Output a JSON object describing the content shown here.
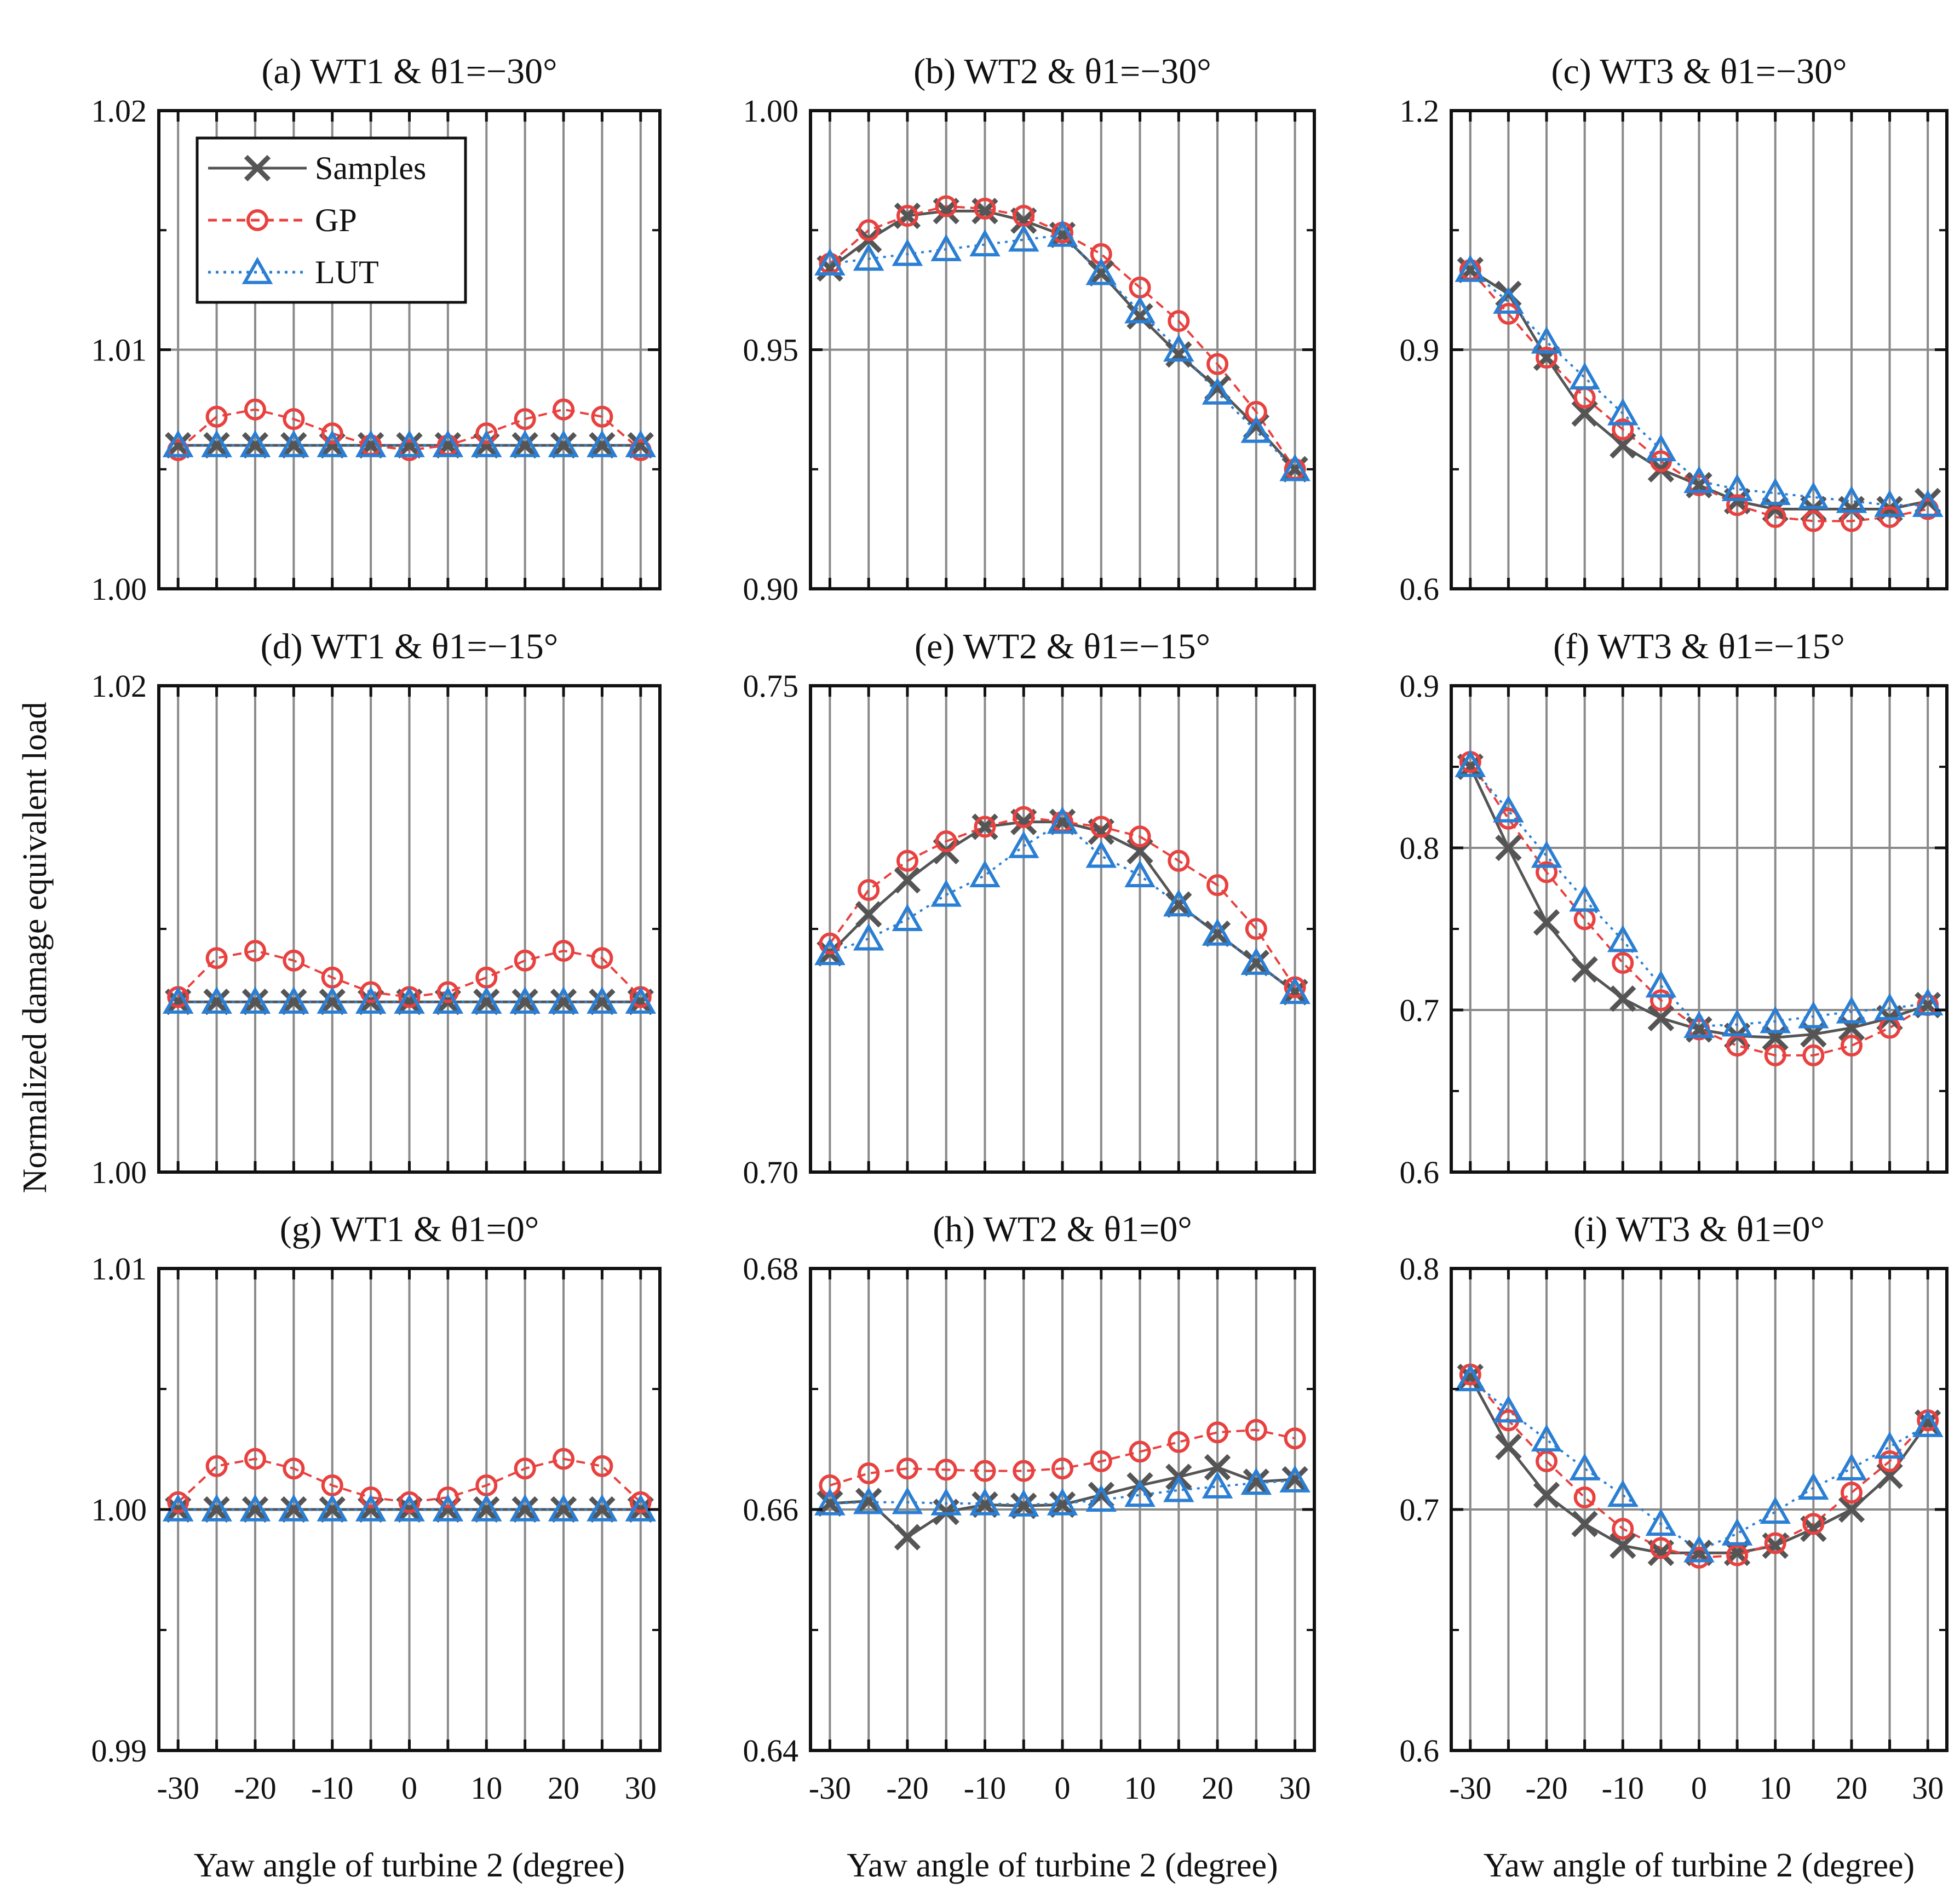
{
  "figure": {
    "ylabel": "Normalized damage equivalent load",
    "xlabel": "Yaw angle of turbine 2  (degree)",
    "legend": [
      {
        "name": "Samples",
        "color": "#555555",
        "marker": "x",
        "line": "solid"
      },
      {
        "name": "GP",
        "color": "#e8413f",
        "marker": "circle",
        "line": "dashed"
      },
      {
        "name": "LUT",
        "color": "#2a7fd4",
        "marker": "triangle",
        "line": "dotted"
      }
    ]
  },
  "chart_data": [
    {
      "type": "line",
      "panel": "a",
      "title": "(a) WT1 & θ1=−30°",
      "xlabel": "",
      "ylabel": "Normalized damage equivalent load",
      "x": [
        -30,
        -25,
        -20,
        -15,
        -10,
        -5,
        0,
        5,
        10,
        15,
        20,
        25,
        30
      ],
      "xticks": [
        "",
        "",
        "",
        "",
        "",
        "",
        "",
        "",
        "",
        "",
        "",
        "",
        ""
      ],
      "ylim": [
        1.0,
        1.02
      ],
      "yticks": [
        1.0,
        1.01,
        1.02
      ],
      "ytick_labels": [
        "1.00",
        "1.01",
        "1.02"
      ],
      "ygrid": [
        1.01
      ],
      "series": [
        {
          "name": "Samples",
          "values": [
            1.006,
            1.006,
            1.006,
            1.006,
            1.006,
            1.006,
            1.006,
            1.006,
            1.006,
            1.006,
            1.006,
            1.006,
            1.006
          ]
        },
        {
          "name": "GP",
          "values": [
            1.0058,
            1.0072,
            1.0075,
            1.0071,
            1.0065,
            1.006,
            1.0058,
            1.006,
            1.0065,
            1.0071,
            1.0075,
            1.0072,
            1.0058
          ]
        },
        {
          "name": "LUT",
          "values": [
            1.006,
            1.006,
            1.006,
            1.006,
            1.006,
            1.006,
            1.006,
            1.006,
            1.006,
            1.006,
            1.006,
            1.006,
            1.006
          ]
        }
      ]
    },
    {
      "type": "line",
      "panel": "b",
      "title": "(b) WT2 & θ1=−30°",
      "xlabel": "",
      "ylabel": "",
      "x": [
        -30,
        -25,
        -20,
        -15,
        -10,
        -5,
        0,
        5,
        10,
        15,
        20,
        25,
        30
      ],
      "xticks": [
        "",
        "",
        "",
        "",
        "",
        "",
        "",
        "",
        "",
        "",
        "",
        "",
        ""
      ],
      "ylim": [
        0.9,
        1.0
      ],
      "yticks": [
        0.9,
        0.95,
        1.0
      ],
      "ytick_labels": [
        "0.90",
        "0.95",
        "1.00"
      ],
      "ygrid": [
        0.95
      ],
      "series": [
        {
          "name": "Samples",
          "values": [
            0.967,
            0.973,
            0.978,
            0.979,
            0.979,
            0.977,
            0.974,
            0.966,
            0.957,
            0.949,
            0.942,
            0.934,
            0.925
          ]
        },
        {
          "name": "GP",
          "values": [
            0.968,
            0.975,
            0.978,
            0.98,
            0.9795,
            0.978,
            0.9745,
            0.97,
            0.963,
            0.956,
            0.947,
            0.937,
            0.925
          ]
        },
        {
          "name": "LUT",
          "values": [
            0.968,
            0.969,
            0.97,
            0.971,
            0.972,
            0.973,
            0.974,
            0.966,
            0.958,
            0.95,
            0.941,
            0.933,
            0.925
          ]
        }
      ]
    },
    {
      "type": "line",
      "panel": "c",
      "title": "(c) WT3 & θ1=−30°",
      "xlabel": "",
      "ylabel": "",
      "x": [
        -30,
        -25,
        -20,
        -15,
        -10,
        -5,
        0,
        5,
        10,
        15,
        20,
        25,
        30
      ],
      "xticks": [
        "",
        "",
        "",
        "",
        "",
        "",
        "",
        "",
        "",
        "",
        "",
        "",
        ""
      ],
      "ylim": [
        0.6,
        1.2
      ],
      "yticks": [
        0.6,
        0.9,
        1.2
      ],
      "ytick_labels": [
        "0.6",
        "0.9",
        "1.2"
      ],
      "ygrid": [
        0.9
      ],
      "series": [
        {
          "name": "Samples",
          "values": [
            1.0,
            0.97,
            0.89,
            0.82,
            0.78,
            0.75,
            0.73,
            0.71,
            0.7,
            0.7,
            0.7,
            0.7,
            0.71
          ]
        },
        {
          "name": "GP",
          "values": [
            1.0,
            0.945,
            0.89,
            0.84,
            0.8,
            0.76,
            0.73,
            0.705,
            0.69,
            0.685,
            0.685,
            0.69,
            0.7
          ]
        },
        {
          "name": "LUT",
          "values": [
            1.0,
            0.96,
            0.91,
            0.865,
            0.82,
            0.775,
            0.735,
            0.725,
            0.72,
            0.715,
            0.71,
            0.705,
            0.705
          ]
        }
      ]
    },
    {
      "type": "line",
      "panel": "d",
      "title": "(d) WT1 & θ1=−15°",
      "xlabel": "",
      "ylabel": "",
      "x": [
        -30,
        -25,
        -20,
        -15,
        -10,
        -5,
        0,
        5,
        10,
        15,
        20,
        25,
        30
      ],
      "xticks": [
        "",
        "",
        "",
        "",
        "",
        "",
        "",
        "",
        "",
        "",
        "",
        "",
        ""
      ],
      "ylim": [
        1.0,
        1.02
      ],
      "yticks": [
        1.0,
        1.02
      ],
      "ytick_labels": [
        "1.00",
        "1.02"
      ],
      "ygrid": [],
      "series": [
        {
          "name": "Samples",
          "values": [
            1.007,
            1.007,
            1.007,
            1.007,
            1.007,
            1.007,
            1.007,
            1.007,
            1.007,
            1.007,
            1.007,
            1.007,
            1.007
          ]
        },
        {
          "name": "GP",
          "values": [
            1.0072,
            1.0088,
            1.0091,
            1.0087,
            1.008,
            1.0074,
            1.0072,
            1.0074,
            1.008,
            1.0087,
            1.0091,
            1.0088,
            1.0072
          ]
        },
        {
          "name": "LUT",
          "values": [
            1.007,
            1.007,
            1.007,
            1.007,
            1.007,
            1.007,
            1.007,
            1.007,
            1.007,
            1.007,
            1.007,
            1.007,
            1.007
          ]
        }
      ]
    },
    {
      "type": "line",
      "panel": "e",
      "title": "(e) WT2 & θ1=−15°",
      "xlabel": "",
      "ylabel": "",
      "x": [
        -30,
        -25,
        -20,
        -15,
        -10,
        -5,
        0,
        5,
        10,
        15,
        20,
        25,
        30
      ],
      "xticks": [
        "",
        "",
        "",
        "",
        "",
        "",
        "",
        "",
        "",
        "",
        "",
        "",
        ""
      ],
      "ylim": [
        0.7,
        0.75
      ],
      "yticks": [
        0.7,
        0.75
      ],
      "ytick_labels": [
        "0.70",
        "0.75"
      ],
      "ygrid": [],
      "series": [
        {
          "name": "Samples",
          "values": [
            0.7225,
            0.7265,
            0.73,
            0.733,
            0.7355,
            0.736,
            0.736,
            0.735,
            0.733,
            0.7275,
            0.7245,
            0.7215,
            0.7185
          ]
        },
        {
          "name": "GP",
          "values": [
            0.7235,
            0.729,
            0.732,
            0.734,
            0.7355,
            0.7365,
            0.736,
            0.7355,
            0.7345,
            0.732,
            0.7295,
            0.725,
            0.719
          ]
        },
        {
          "name": "LUT",
          "values": [
            0.7225,
            0.724,
            0.726,
            0.7285,
            0.7305,
            0.7335,
            0.736,
            0.7325,
            0.7305,
            0.7275,
            0.7245,
            0.7215,
            0.7185
          ]
        }
      ]
    },
    {
      "type": "line",
      "panel": "f",
      "title": "(f) WT3 & θ1=−15°",
      "xlabel": "",
      "ylabel": "",
      "x": [
        -30,
        -25,
        -20,
        -15,
        -10,
        -5,
        0,
        5,
        10,
        15,
        20,
        25,
        30
      ],
      "xticks": [
        "",
        "",
        "",
        "",
        "",
        "",
        "",
        "",
        "",
        "",
        "",
        "",
        ""
      ],
      "ylim": [
        0.6,
        0.9
      ],
      "yticks": [
        0.6,
        0.7,
        0.8,
        0.9
      ],
      "ytick_labels": [
        "0.6",
        "0.7",
        "0.8",
        "0.9"
      ],
      "ygrid": [
        0.7,
        0.8
      ],
      "series": [
        {
          "name": "Samples",
          "values": [
            0.85,
            0.8,
            0.754,
            0.725,
            0.707,
            0.695,
            0.688,
            0.684,
            0.683,
            0.685,
            0.689,
            0.695,
            0.703
          ]
        },
        {
          "name": "GP",
          "values": [
            0.853,
            0.818,
            0.785,
            0.756,
            0.729,
            0.706,
            0.688,
            0.678,
            0.672,
            0.672,
            0.678,
            0.689,
            0.703
          ]
        },
        {
          "name": "LUT",
          "values": [
            0.851,
            0.823,
            0.795,
            0.768,
            0.743,
            0.715,
            0.69,
            0.691,
            0.693,
            0.696,
            0.699,
            0.701,
            0.704
          ]
        }
      ]
    },
    {
      "type": "line",
      "panel": "g",
      "title": "(g) WT1 & θ1=0°",
      "xlabel": "Yaw angle of turbine 2  (degree)",
      "ylabel": "",
      "x": [
        -30,
        -25,
        -20,
        -15,
        -10,
        -5,
        0,
        5,
        10,
        15,
        20,
        25,
        30
      ],
      "xticks": [
        "-30",
        "",
        "-20",
        "",
        "-10",
        "",
        "0",
        "",
        "10",
        "",
        "20",
        "",
        "30"
      ],
      "ylim": [
        0.99,
        1.01
      ],
      "yticks": [
        0.99,
        1.0,
        1.01
      ],
      "ytick_labels": [
        "0.99",
        "1.00",
        "1.01"
      ],
      "ygrid": [
        1.0
      ],
      "series": [
        {
          "name": "Samples",
          "values": [
            1.0,
            1.0,
            1.0,
            1.0,
            1.0,
            1.0,
            1.0,
            1.0,
            1.0,
            1.0,
            1.0,
            1.0,
            1.0
          ]
        },
        {
          "name": "GP",
          "values": [
            1.0003,
            1.0018,
            1.0021,
            1.0017,
            1.001,
            1.0005,
            1.0003,
            1.0005,
            1.001,
            1.0017,
            1.0021,
            1.0018,
            1.0003
          ]
        },
        {
          "name": "LUT",
          "values": [
            1.0,
            1.0,
            1.0,
            1.0,
            1.0,
            1.0,
            1.0,
            1.0,
            1.0,
            1.0,
            1.0,
            1.0,
            1.0
          ]
        }
      ]
    },
    {
      "type": "line",
      "panel": "h",
      "title": "(h) WT2 & θ1=0°",
      "xlabel": "Yaw angle of turbine 2  (degree)",
      "ylabel": "",
      "x": [
        -30,
        -25,
        -20,
        -15,
        -10,
        -5,
        0,
        5,
        10,
        15,
        20,
        25,
        30
      ],
      "xticks": [
        "-30",
        "",
        "-20",
        "",
        "-10",
        "",
        "0",
        "",
        "10",
        "",
        "20",
        "",
        "30"
      ],
      "ylim": [
        0.64,
        0.68
      ],
      "yticks": [
        0.64,
        0.66,
        0.68
      ],
      "ytick_labels": [
        "0.64",
        "0.66",
        "0.68"
      ],
      "ygrid": [
        0.66
      ],
      "series": [
        {
          "name": "Samples",
          "values": [
            0.6605,
            0.6607,
            0.6577,
            0.6598,
            0.6604,
            0.6603,
            0.6604,
            0.6612,
            0.662,
            0.6627,
            0.6635,
            0.6623,
            0.6625
          ]
        },
        {
          "name": "GP",
          "values": [
            0.662,
            0.663,
            0.6634,
            0.6633,
            0.6632,
            0.6632,
            0.6634,
            0.664,
            0.6648,
            0.6656,
            0.6664,
            0.6666,
            0.6659
          ]
        },
        {
          "name": "LUT",
          "values": [
            0.6605,
            0.6606,
            0.6606,
            0.6605,
            0.6605,
            0.6604,
            0.6605,
            0.6608,
            0.6612,
            0.6616,
            0.6619,
            0.6622,
            0.6624
          ]
        }
      ]
    },
    {
      "type": "line",
      "panel": "i",
      "title": "(i) WT3 & θ1=0°",
      "xlabel": "Yaw angle of turbine 2  (degree)",
      "ylabel": "",
      "x": [
        -30,
        -25,
        -20,
        -15,
        -10,
        -5,
        0,
        5,
        10,
        15,
        20,
        25,
        30
      ],
      "xticks": [
        "-30",
        "",
        "-20",
        "",
        "-10",
        "",
        "0",
        "",
        "10",
        "",
        "20",
        "",
        "30"
      ],
      "ylim": [
        0.6,
        0.8
      ],
      "yticks": [
        0.6,
        0.7,
        0.8
      ],
      "ytick_labels": [
        "0.6",
        "0.7",
        "0.8"
      ],
      "ygrid": [
        0.7
      ],
      "series": [
        {
          "name": "Samples",
          "values": [
            0.755,
            0.726,
            0.706,
            0.694,
            0.685,
            0.682,
            0.682,
            0.682,
            0.685,
            0.692,
            0.7,
            0.714,
            0.736
          ]
        },
        {
          "name": "GP",
          "values": [
            0.756,
            0.737,
            0.72,
            0.705,
            0.692,
            0.684,
            0.68,
            0.681,
            0.686,
            0.694,
            0.707,
            0.72,
            0.737
          ]
        },
        {
          "name": "LUT",
          "values": [
            0.754,
            0.741,
            0.729,
            0.717,
            0.706,
            0.694,
            0.683,
            0.69,
            0.699,
            0.709,
            0.717,
            0.726,
            0.735
          ]
        }
      ]
    }
  ]
}
